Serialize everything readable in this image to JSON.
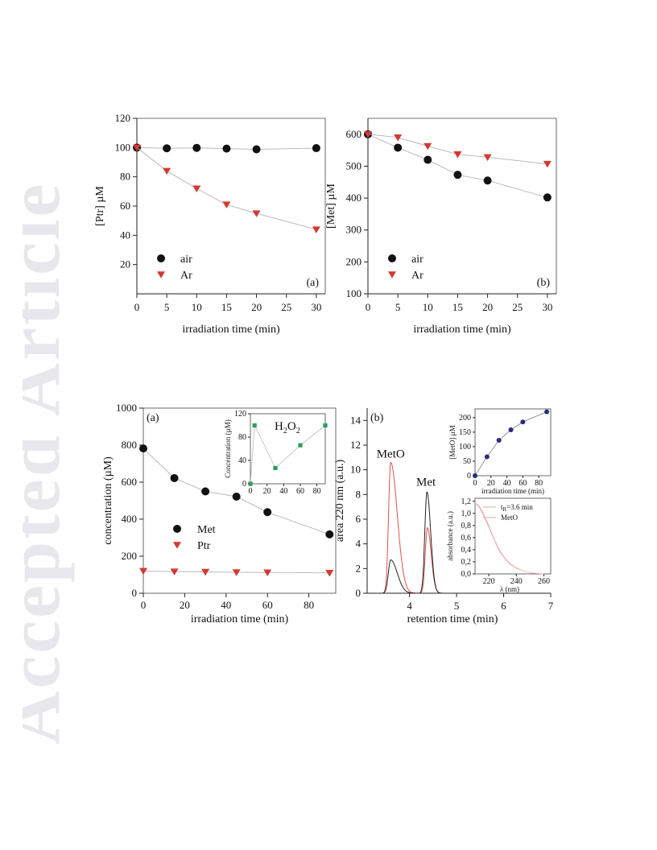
{
  "watermark": {
    "text": "Accepted Article",
    "color": "#e8e8ec"
  },
  "colors": {
    "air": "#111111",
    "ar": "#d23a32",
    "h2o2": "#2f9a5e",
    "meto_inset": "#2b2b7a",
    "chrom_black": "#222222",
    "chrom_red": "#d9534f",
    "line": "#b9b9c4"
  },
  "chart_data": [
    {
      "id": "fig1a",
      "type": "scatter",
      "panel_label": "(a)",
      "xlabel": "irradiation time (min)",
      "ylabel": "[Ptr] µM",
      "xlim": [
        0,
        31.5
      ],
      "ylim": [
        0,
        120
      ],
      "xticks": [
        0,
        5,
        10,
        15,
        20,
        25,
        30
      ],
      "yticks": [
        20,
        40,
        60,
        80,
        100,
        120
      ],
      "legend": "bottom-left",
      "series": [
        {
          "name": "air",
          "marker": "circle",
          "color": "#111111",
          "x": [
            0,
            5,
            10,
            15,
            20,
            30
          ],
          "y": [
            100,
            99.5,
            99.8,
            99.3,
            98.8,
            99.6
          ]
        },
        {
          "name": "Ar",
          "marker": "triangle-down",
          "color": "#d23a32",
          "x": [
            0,
            5,
            10,
            15,
            20,
            30
          ],
          "y": [
            100,
            84,
            72,
            61,
            55,
            44
          ]
        }
      ]
    },
    {
      "id": "fig1b",
      "type": "scatter",
      "panel_label": "(b)",
      "xlabel": "irradiation time (min)",
      "ylabel": "[Met] µM",
      "xlim": [
        0,
        31.5
      ],
      "ylim": [
        100,
        650
      ],
      "xticks": [
        0,
        5,
        10,
        15,
        20,
        25,
        30
      ],
      "yticks": [
        100,
        200,
        300,
        400,
        500,
        600
      ],
      "legend": "bottom-left",
      "series": [
        {
          "name": "air",
          "marker": "circle",
          "color": "#111111",
          "x": [
            0,
            5,
            10,
            15,
            20,
            30
          ],
          "y": [
            600,
            558,
            520,
            473,
            455,
            402
          ]
        },
        {
          "name": "Ar",
          "marker": "triangle-down",
          "color": "#d23a32",
          "x": [
            0,
            5,
            10,
            15,
            20,
            30
          ],
          "y": [
            600,
            590,
            563,
            537,
            528,
            507
          ]
        }
      ]
    },
    {
      "id": "fig2a",
      "type": "scatter",
      "panel_label": "(a)",
      "xlabel": "irradiation time (min)",
      "ylabel": "concentration (µM)",
      "xlim": [
        0,
        93
      ],
      "ylim": [
        0,
        1000
      ],
      "xticks": [
        0,
        20,
        40,
        60,
        80
      ],
      "yticks": [
        0,
        200,
        400,
        600,
        800,
        1000
      ],
      "legend": "middle-left",
      "series": [
        {
          "name": "Met",
          "marker": "circle",
          "color": "#111111",
          "x": [
            0,
            15,
            30,
            45,
            60,
            90
          ],
          "y": [
            782,
            622,
            550,
            522,
            438,
            318
          ]
        },
        {
          "name": "Ptr",
          "marker": "triangle-down",
          "color": "#d23a32",
          "x": [
            0,
            15,
            30,
            45,
            60,
            90
          ],
          "y": [
            120,
            117,
            115,
            113,
            112,
            110
          ]
        }
      ],
      "inset": {
        "type": "scatter",
        "ylabel": "Concentration (µM)",
        "annotation": "H",
        "annotation_sub1": "2",
        "annotation_mid": "O",
        "annotation_sub2": "2",
        "xlim": [
          0,
          90
        ],
        "ylim": [
          0,
          120
        ],
        "xticks": [
          0,
          20,
          40,
          60,
          80
        ],
        "yticks": [
          0,
          40,
          80,
          120
        ],
        "series": [
          {
            "name": "H2O2",
            "marker": "square",
            "color": "#2f9a5e",
            "x": [
              0,
              5,
              30,
              60,
              90
            ],
            "y": [
              0,
              100,
              27,
              66,
              100
            ]
          }
        ]
      }
    },
    {
      "id": "fig2b",
      "type": "line",
      "panel_label": "(b)",
      "xlabel": "retention time (min)",
      "ylabel": "area 220 nm (a.u.)",
      "xlim": [
        3.1,
        7
      ],
      "ylim": [
        0,
        15
      ],
      "xticks": [
        4,
        5,
        6,
        7
      ],
      "yticks": [
        0,
        2,
        4,
        6,
        8,
        10,
        12,
        14
      ],
      "annotations": [
        {
          "text": "MetO",
          "x": 3.6,
          "y": 11.0
        },
        {
          "text": "Met",
          "x": 4.35,
          "y": 8.7
        }
      ],
      "series": [
        {
          "name": "",
          "color": "#d9534f",
          "peaks": [
            {
              "center": 3.6,
              "height": 10.6,
              "width": 0.045,
              "tail": 0.14
            },
            {
              "center": 4.38,
              "height": 5.3,
              "width": 0.045,
              "tail": 0.08
            }
          ]
        },
        {
          "name": "",
          "color": "#222222",
          "peaks": [
            {
              "center": 3.6,
              "height": 2.7,
              "width": 0.05,
              "tail": 0.14
            },
            {
              "center": 4.37,
              "height": 8.2,
              "width": 0.045,
              "tail": 0.08
            }
          ]
        }
      ],
      "inset_top": {
        "type": "scatter",
        "xlabel": "irradiation time (min)",
        "ylabel": "[MetO] µM",
        "xlim": [
          0,
          95
        ],
        "ylim": [
          0,
          230
        ],
        "xticks": [
          0,
          20,
          40,
          60,
          80
        ],
        "yticks": [
          0,
          50,
          100,
          150,
          200
        ],
        "series": [
          {
            "name": "",
            "marker": "circle",
            "color": "#2b2b7a",
            "x": [
              0,
              15,
              30,
              45,
              60,
              90
            ],
            "y": [
              0,
              65,
              122,
              158,
              185,
              220
            ]
          }
        ]
      },
      "inset_bottom": {
        "type": "line",
        "xlabel": "λ (nm)",
        "ylabel": "absorbance (a.u.)",
        "xlim": [
          210,
          265
        ],
        "ylim": [
          0,
          1.25
        ],
        "xticks": [
          220,
          240,
          260
        ],
        "yticks": [
          0.0,
          0.2,
          0.4,
          0.6,
          0.8,
          1.0,
          1.2
        ],
        "ytick_labels": [
          "0,0",
          "0,2",
          "0,4",
          "0,6",
          "0,8",
          "1,0",
          "1,2"
        ],
        "legend_entries": [
          {
            "label_main": "t",
            "label_sub": "R",
            "label_rest": "=3.6 min",
            "color": "#e9a6a6"
          },
          {
            "label_main": "MetO",
            "label_sub": "",
            "label_rest": "",
            "color": "#e9a6a6"
          }
        ],
        "series": [
          {
            "name": "",
            "color": "#e9a6a6",
            "x": [
              210,
              213,
              216,
              219,
              222,
              225,
              228,
              232,
              236,
              240,
              245,
              250,
              255,
              260
            ],
            "y": [
              1.18,
              1.12,
              1.0,
              0.85,
              0.68,
              0.52,
              0.38,
              0.25,
              0.16,
              0.1,
              0.05,
              0.02,
              0.01,
              0.0
            ]
          },
          {
            "name": "",
            "color": "#f2c4c4",
            "x": [
              210,
              213,
              216,
              219,
              222,
              225,
              228,
              232,
              236,
              240,
              245,
              250,
              255,
              260
            ],
            "y": [
              1.16,
              1.1,
              0.97,
              0.82,
              0.66,
              0.5,
              0.36,
              0.24,
              0.15,
              0.09,
              0.05,
              0.02,
              0.01,
              0.0
            ]
          }
        ]
      }
    }
  ]
}
